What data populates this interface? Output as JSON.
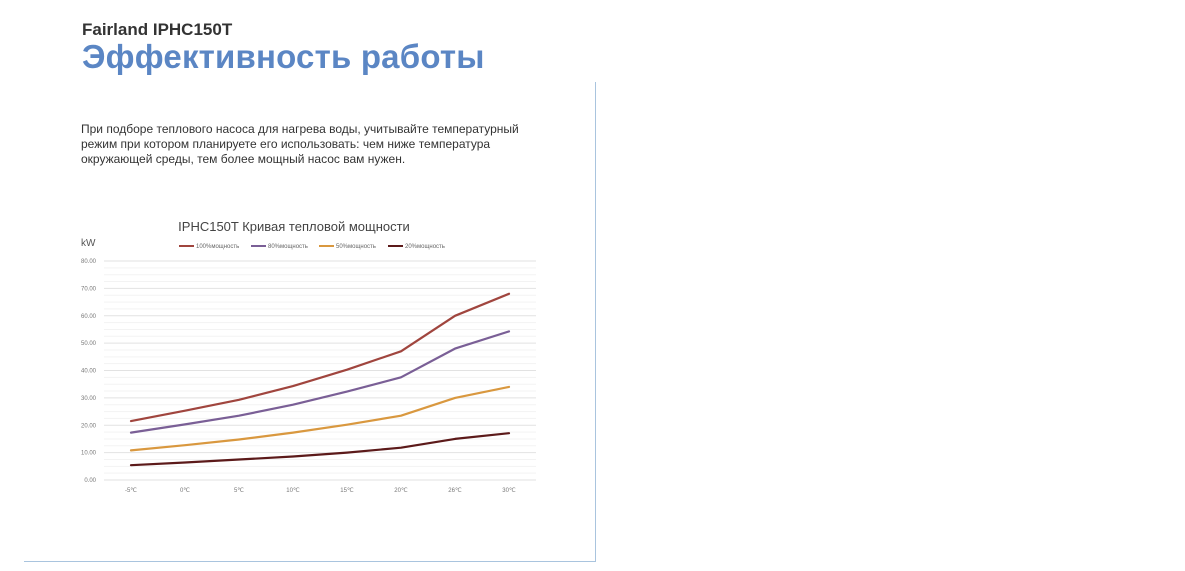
{
  "page": {
    "model": "Fairland IPHC150T",
    "heading": "Эффективность работы",
    "intro": "При подборе теплового насоса для нагрева воды, учитывайте температурный режим при котором планируете его использовать: чем ниже температура окружающей среды, тем более мощный насос вам нужен."
  },
  "chart_data": {
    "type": "line",
    "title": "IPHC150T  Кривая тепловой мощности",
    "ylabel": "kW",
    "xlabel": "",
    "categories": [
      "-5℃",
      "0℃",
      "5℃",
      "10℃",
      "15℃",
      "20℃",
      "26℃",
      "30℃"
    ],
    "y_ticks": [
      "0.00",
      "10.00",
      "20.00",
      "30.00",
      "40.00",
      "50.00",
      "60.00",
      "70.00",
      "80.00"
    ],
    "ylim": [
      0,
      80
    ],
    "grid": true,
    "legend_position": "top",
    "series": [
      {
        "name": "100%мощность",
        "color": "#a0453e",
        "values": [
          21.5,
          25.3,
          29.3,
          34.3,
          40.3,
          47.0,
          60.0,
          68.0
        ]
      },
      {
        "name": "80%мощность",
        "color": "#7a5f96",
        "values": [
          17.3,
          20.3,
          23.5,
          27.5,
          32.3,
          37.5,
          48.0,
          54.3
        ]
      },
      {
        "name": "50%мощность",
        "color": "#d9983f",
        "values": [
          10.8,
          12.7,
          14.8,
          17.3,
          20.2,
          23.5,
          30.0,
          34.0
        ]
      },
      {
        "name": "20%мощность",
        "color": "#5c1a1a",
        "values": [
          5.4,
          6.4,
          7.5,
          8.6,
          10.0,
          11.8,
          15.0,
          17.1
        ]
      }
    ]
  }
}
